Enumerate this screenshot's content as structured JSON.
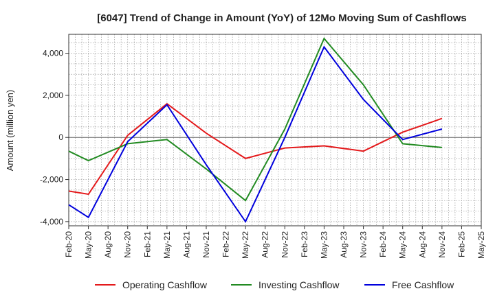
{
  "chart_data": {
    "type": "line",
    "title": "[6047]  Trend of Change in Amount (YoY) of 12Mo Moving Sum of Cashflows",
    "xlabel": "",
    "ylabel": "Amount (million yen)",
    "ylim": [
      -4200,
      4900
    ],
    "yticks": [
      -4000,
      -2000,
      0,
      2000,
      4000
    ],
    "ytick_labels": [
      "-4,000",
      "-2,000",
      "0",
      "2,000",
      "4,000"
    ],
    "grid": true,
    "legend_position": "bottom",
    "categories": [
      "Feb-20",
      "May-20",
      "Aug-20",
      "Nov-20",
      "Feb-21",
      "May-21",
      "Aug-21",
      "Nov-21",
      "Feb-22",
      "May-22",
      "Aug-22",
      "Nov-22",
      "Feb-23",
      "May-23",
      "Aug-23",
      "Nov-23",
      "Feb-24",
      "May-24",
      "Aug-24",
      "Nov-24",
      "Feb-25",
      "May-25"
    ],
    "series": [
      {
        "name": "Operating Cashflow",
        "color": "#e41a1c",
        "values": [
          -2550,
          -2700,
          null,
          100,
          null,
          1600,
          null,
          200,
          null,
          -1000,
          null,
          -500,
          null,
          -400,
          null,
          -650,
          null,
          250,
          null,
          900,
          null,
          null
        ]
      },
      {
        "name": "Investing Cashflow",
        "color": "#228b22",
        "values": [
          -650,
          -1100,
          null,
          -300,
          null,
          -100,
          null,
          -1500,
          null,
          -3000,
          null,
          400,
          null,
          4700,
          null,
          2500,
          null,
          -300,
          null,
          -480,
          null,
          null
        ]
      },
      {
        "name": "Free Cashflow",
        "color": "#0000dd",
        "values": [
          -3200,
          -3800,
          null,
          -200,
          null,
          1550,
          null,
          -1300,
          null,
          -4000,
          null,
          0,
          null,
          4300,
          null,
          1800,
          null,
          -100,
          null,
          400,
          null,
          null
        ]
      }
    ]
  }
}
